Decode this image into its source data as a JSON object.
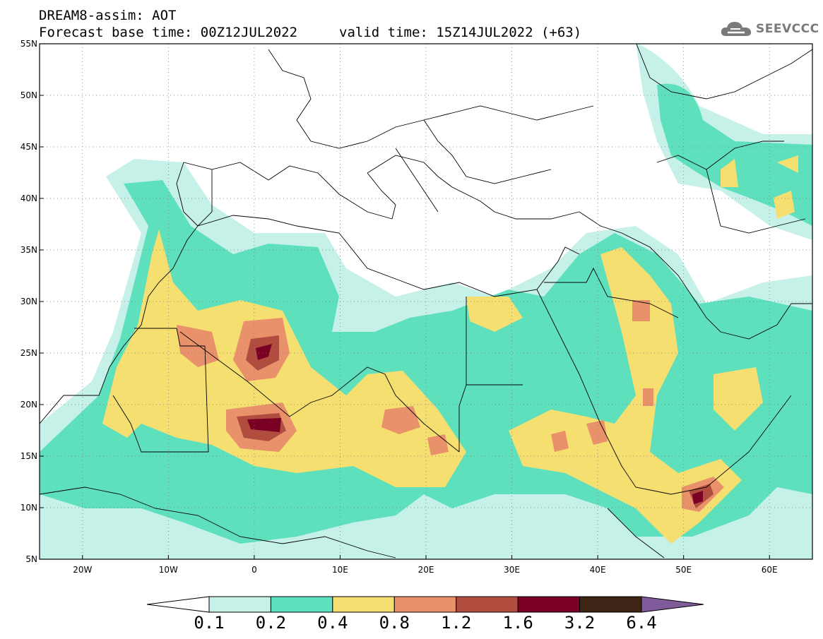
{
  "header": {
    "title": "DREAM8-assim: AOT",
    "base_time": "Forecast base time: 00Z12JUL2022",
    "valid_time": "valid time: 15Z14JUL2022 (+63)"
  },
  "logo": {
    "text": "SEEVCCC",
    "icon": "cloud-icon"
  },
  "map": {
    "lon_range": [
      -25,
      65
    ],
    "lat_range": [
      5,
      55
    ],
    "lon_ticks": [
      "20W",
      "10W",
      "0",
      "10E",
      "20E",
      "30E",
      "40E",
      "50E",
      "60E"
    ],
    "lat_ticks": [
      "5N",
      "10N",
      "15N",
      "20N",
      "25N",
      "30N",
      "35N",
      "40N",
      "45N",
      "50N",
      "55N"
    ],
    "gridlines": "dotted",
    "variable": "Aerosol Optical Thickness"
  },
  "colorbar": {
    "levels": [
      "0.1",
      "0.2",
      "0.4",
      "0.8",
      "1.2",
      "1.6",
      "3.2",
      "6.4"
    ],
    "colors": [
      "#ffffff",
      "#c6f1e9",
      "#5fe0bd",
      "#f5df70",
      "#e8916a",
      "#b04d3e",
      "#7a0024",
      "#3e2414",
      "#7f5b9c"
    ]
  }
}
